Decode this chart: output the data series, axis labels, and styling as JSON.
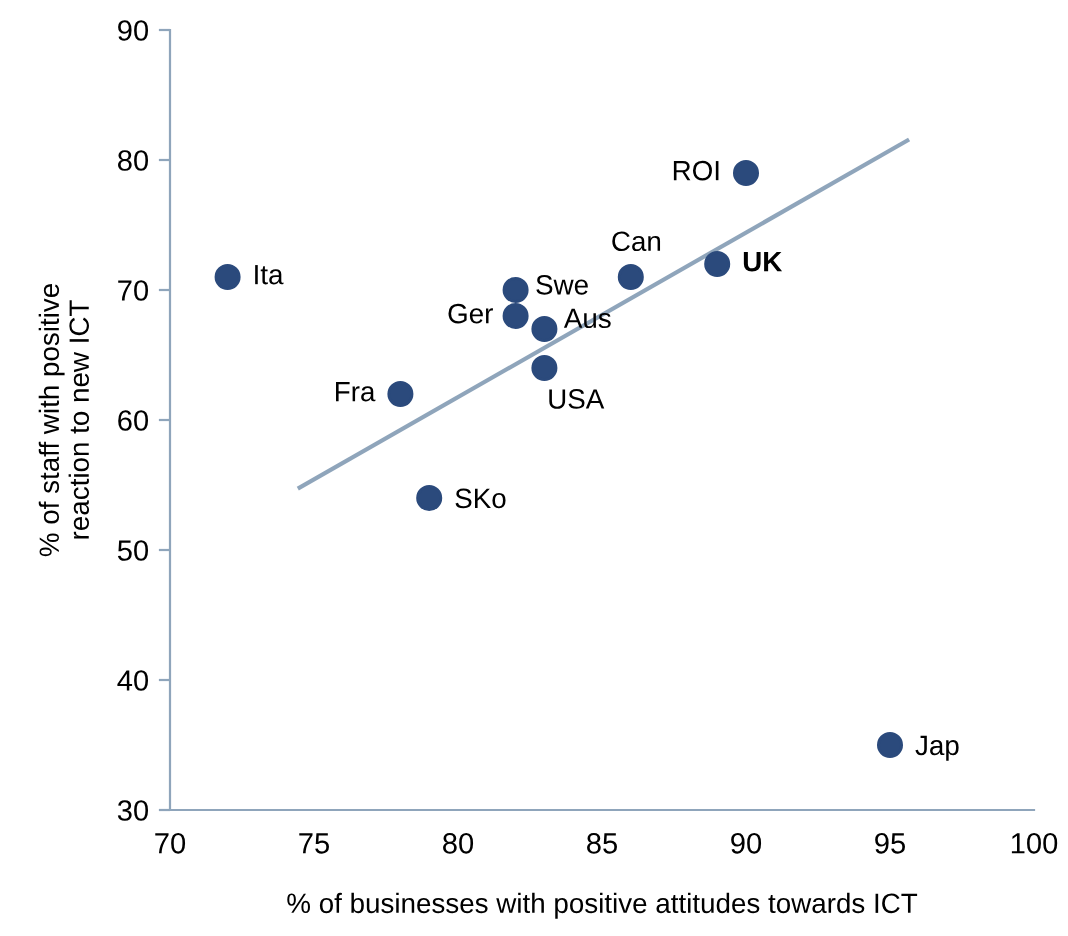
{
  "chart_data": {
    "type": "scatter",
    "xlabel": "% of businesses with positive attitudes towards ICT",
    "ylabel": "% of staff with positive\nreaction to new ICT",
    "xlim": [
      70,
      100
    ],
    "xticks": [
      70,
      75,
      80,
      85,
      90,
      95,
      100
    ],
    "ylim": [
      30,
      90
    ],
    "yticks": [
      30,
      40,
      50,
      60,
      70,
      80,
      90
    ],
    "grid": false,
    "series": [
      {
        "marker": "circle",
        "color": "#2b4a7c",
        "x": [
          72,
          78,
          79,
          82,
          82,
          83,
          83,
          86,
          89,
          90,
          95
        ],
        "values": [
          71,
          62,
          54,
          70,
          68,
          67,
          64,
          71,
          72,
          79,
          35
        ]
      },
      {
        "type": "line",
        "color": "#8fa5bb",
        "x": [
          74.5,
          95.6
        ],
        "values": [
          54.8,
          81.5
        ]
      }
    ],
    "annotations": [
      {
        "text": "Ita",
        "x": 72,
        "y": 71
      },
      {
        "text": "Fra",
        "x": 78,
        "y": 62
      },
      {
        "text": "SKo",
        "x": 79,
        "y": 54
      },
      {
        "text": "Swe",
        "x": 82,
        "y": 70
      },
      {
        "text": "Ger",
        "x": 82,
        "y": 68
      },
      {
        "text": "Aus",
        "x": 83,
        "y": 67
      },
      {
        "text": "USA",
        "x": 83,
        "y": 64
      },
      {
        "text": "Can",
        "x": 86,
        "y": 71
      },
      {
        "text": "UK",
        "x": 89,
        "y": 72
      },
      {
        "text": "ROI",
        "x": 90,
        "y": 79
      },
      {
        "text": "Jap",
        "x": 95,
        "y": 35
      }
    ]
  }
}
